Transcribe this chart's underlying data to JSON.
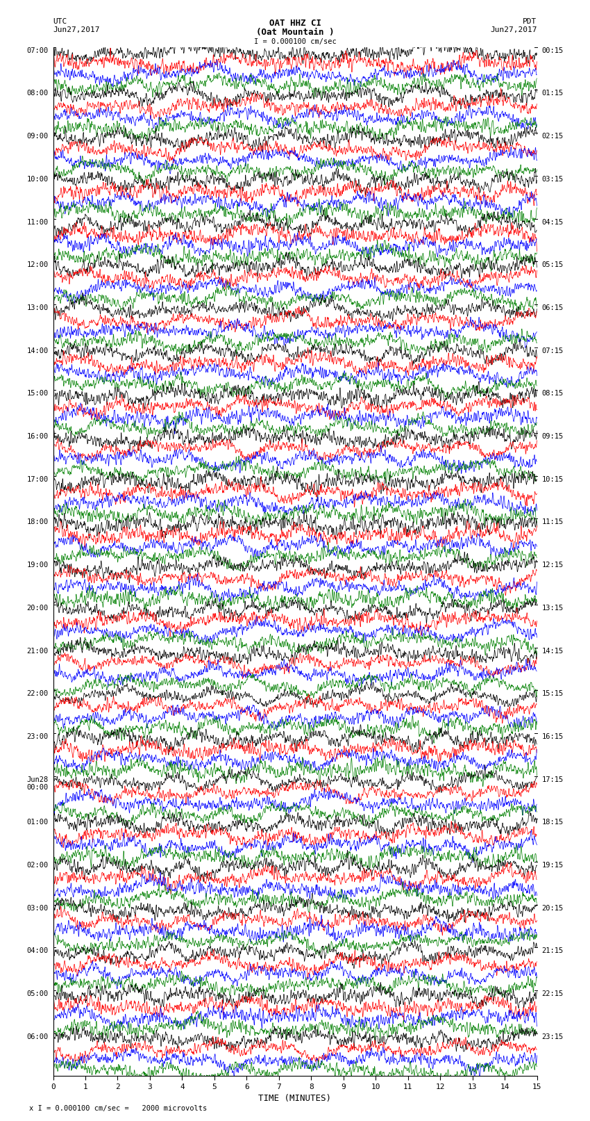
{
  "title_line1": "OAT HHZ CI",
  "title_line2": "(Oat Mountain )",
  "title_line3": "I = 0.000100 cm/sec",
  "left_header": "UTC\nJun27,2017",
  "right_header": "PDT\nJun27,2017",
  "xlabel": "TIME (MINUTES)",
  "footer": "x I = 0.000100 cm/sec =   2000 microvolts",
  "left_times_labels": [
    "07:00",
    "08:00",
    "09:00",
    "10:00",
    "11:00",
    "12:00",
    "13:00",
    "14:00",
    "15:00",
    "16:00",
    "17:00",
    "18:00",
    "19:00",
    "20:00",
    "21:00",
    "22:00",
    "23:00",
    "Jun28\n00:00",
    "01:00",
    "02:00",
    "03:00",
    "04:00",
    "05:00",
    "06:00"
  ],
  "right_times_labels": [
    "00:15",
    "01:15",
    "02:15",
    "03:15",
    "04:15",
    "05:15",
    "06:15",
    "07:15",
    "08:15",
    "09:15",
    "10:15",
    "11:15",
    "12:15",
    "13:15",
    "14:15",
    "15:15",
    "16:15",
    "17:15",
    "18:15",
    "19:15",
    "20:15",
    "21:15",
    "22:15",
    "23:15"
  ],
  "colors": [
    "black",
    "red",
    "blue",
    "green"
  ],
  "num_hour_groups": 24,
  "traces_per_group": 4,
  "x_min": 0,
  "x_max": 15,
  "x_ticks": [
    0,
    1,
    2,
    3,
    4,
    5,
    6,
    7,
    8,
    9,
    10,
    11,
    12,
    13,
    14,
    15
  ],
  "background_color": "white",
  "line_width": 0.5
}
